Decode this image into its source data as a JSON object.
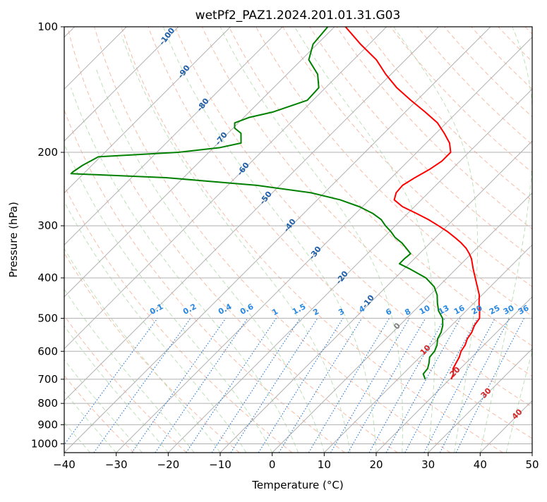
{
  "chart_data": {
    "type": "line",
    "title": "wetPf2_PAZ1.2024.201.01.31.G03",
    "xlabel": "Temperature (°C)",
    "ylabel": "Pressure (hPa)",
    "xlim": [
      -40,
      50
    ],
    "ylim": [
      1050,
      100
    ],
    "y_scale": "log",
    "skew": true,
    "grid": true,
    "x_ticks": [
      "−40",
      "−30",
      "−20",
      "−10",
      "0",
      "10",
      "20",
      "30",
      "40",
      "50"
    ],
    "x_tick_values": [
      -40,
      -30,
      -20,
      -10,
      0,
      10,
      20,
      30,
      40,
      50
    ],
    "y_ticks": [
      "1000",
      "900",
      "800",
      "700",
      "600",
      "500",
      "400",
      "300",
      "200",
      "100"
    ],
    "y_tick_values": [
      1000,
      900,
      800,
      700,
      600,
      500,
      400,
      300,
      200,
      100
    ],
    "series": [
      {
        "color": "#ff0000",
        "p": [
          700,
          680,
          660,
          640,
          620,
          600,
          580,
          560,
          540,
          520,
          500,
          480,
          460,
          440,
          420,
          400,
          380,
          360,
          350,
          340,
          330,
          320,
          310,
          300,
          290,
          280,
          270,
          260,
          250,
          240,
          230,
          220,
          210,
          200,
          190,
          180,
          170,
          160,
          150,
          140,
          130,
          120,
          110,
          100
        ],
        "t": [
          20.3,
          19.7,
          18.6,
          18.1,
          17.6,
          16.8,
          16.4,
          15.6,
          15.2,
          14.4,
          14.0,
          12.6,
          11.0,
          9.5,
          7.5,
          5.4,
          3.2,
          1.0,
          -0.4,
          -2.0,
          -4.0,
          -6.3,
          -8.8,
          -11.7,
          -14.8,
          -18.4,
          -22.3,
          -25.2,
          -26.2,
          -26.4,
          -25.5,
          -24.3,
          -23.5,
          -23.5,
          -25.5,
          -28.4,
          -31.7,
          -36.2,
          -41.2,
          -46.3,
          -51.0,
          -55.6,
          -61.7,
          -67.9
        ]
      },
      {
        "color": "#008000",
        "p": [
          700,
          680,
          660,
          640,
          620,
          600,
          580,
          560,
          540,
          520,
          500,
          480,
          460,
          440,
          420,
          400,
          380,
          370,
          360,
          350,
          340,
          330,
          320,
          310,
          300,
          290,
          280,
          270,
          260,
          250,
          240,
          230,
          225,
          223,
          215,
          205,
          200,
          195,
          190,
          180,
          175,
          170,
          165,
          160,
          150,
          140,
          130,
          120,
          110,
          100
        ],
        "t": [
          15.3,
          13.9,
          13.7,
          12.9,
          11.9,
          11.7,
          11.0,
          9.9,
          9.3,
          8.3,
          6.9,
          4.7,
          3.0,
          1.4,
          -0.8,
          -4.1,
          -9.1,
          -11.9,
          -11.9,
          -11.7,
          -13.5,
          -15.4,
          -17.8,
          -19.7,
          -21.9,
          -23.9,
          -26.8,
          -30.6,
          -35.6,
          -42.6,
          -54.4,
          -73.4,
          -92.4,
          -92.4,
          -91.8,
          -90.4,
          -75.9,
          -68.9,
          -65.6,
          -67.5,
          -69.7,
          -70.7,
          -69.0,
          -65.4,
          -61.1,
          -61.3,
          -64.1,
          -68.6,
          -70.8,
          -71.3
        ]
      }
    ],
    "annotations": {
      "dry_adiabat_labels": [
        "-100",
        "-90",
        "-80",
        "-70",
        "-60",
        "-50",
        "-40",
        "-30",
        "-20",
        "-10"
      ],
      "mixing_ratio_labels": [
        "0.1",
        "0.2",
        "0.4",
        "0.6",
        "1",
        "1.5",
        "2",
        "3",
        "4",
        "6",
        "8",
        "10",
        "13",
        "16",
        "20",
        "25",
        "30",
        "36"
      ],
      "moist_adiabat_labels": [
        "0",
        "10",
        "20",
        "30",
        "40"
      ]
    },
    "colors": {
      "isotherm": "#b0b0b0",
      "isobar": "#b0b0b0",
      "dry_adiabat": "#f4a58a",
      "moist_adiabat": "#a8d5a2",
      "mixing_ratio": "#1f77d4",
      "label_dry": "#1f5fa8",
      "label_mixing": "#2a88e0",
      "label_moist_zero": "#808080",
      "label_moist": "#d62728"
    }
  }
}
